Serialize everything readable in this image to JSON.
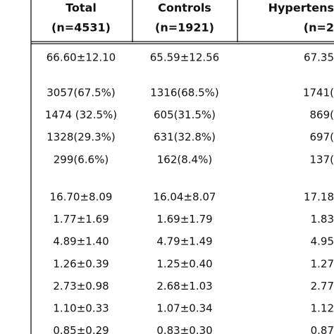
{
  "table": {
    "columns": [
      {
        "title": "Total",
        "n": "(n=4531)"
      },
      {
        "title": "Controls",
        "n": "(n=1921)"
      },
      {
        "title": "Hypertens",
        "n": "(n=2"
      }
    ],
    "groups": [
      [
        [
          "66.60±12.10",
          "65.59±12.56",
          "67.35"
        ]
      ],
      [
        [
          "3057(67.5%)",
          "1316(68.5%)",
          "1741("
        ],
        [
          "1474 (32.5%)",
          "605(31.5%)",
          "869("
        ],
        [
          "1328(29.3%)",
          "631(32.8%)",
          "697("
        ],
        [
          "299(6.6%)",
          "162(8.4%)",
          "137("
        ]
      ],
      [
        [
          "16.70±8.09",
          "16.04±8.07",
          "17.18"
        ],
        [
          "1.77±1.69",
          "1.69±1.79",
          "1.83"
        ],
        [
          "4.89±1.40",
          "4.79±1.49",
          "4.95"
        ],
        [
          "1.26±0.39",
          "1.25±0.40",
          "1.27"
        ],
        [
          "2.73±0.98",
          "2.68±1.03",
          "2.77"
        ],
        [
          "1.10±0.33",
          "1.07±0.34",
          "1.12"
        ],
        [
          "0.85±0.29",
          "0.83±0.30",
          "0.87"
        ]
      ]
    ]
  }
}
